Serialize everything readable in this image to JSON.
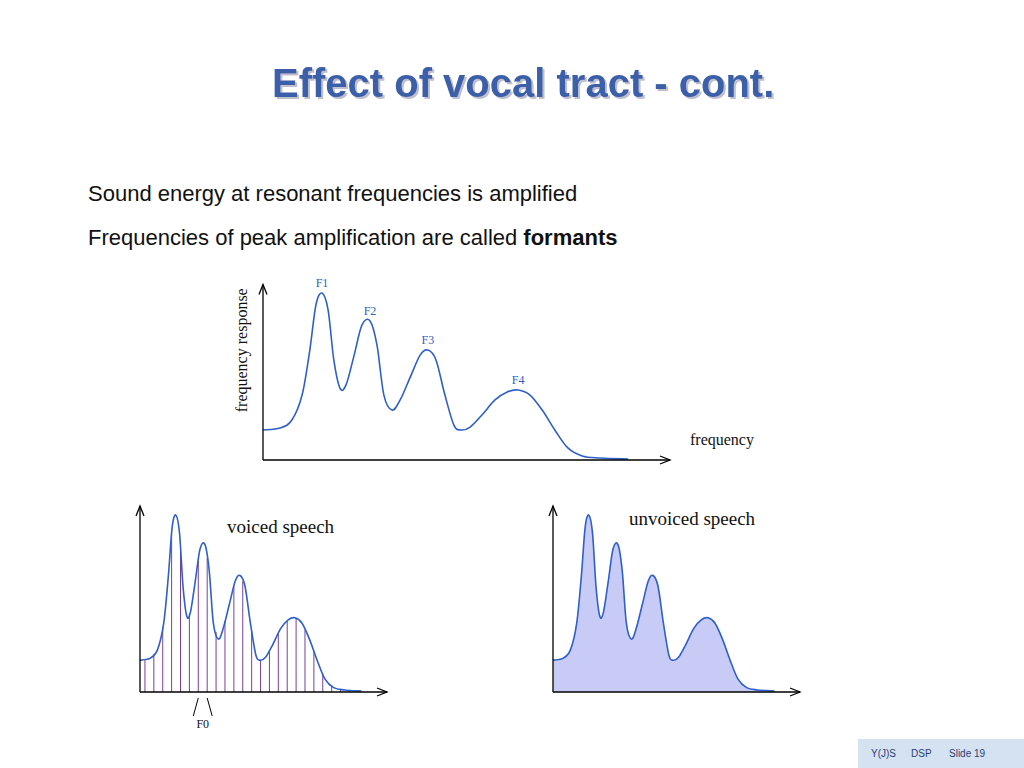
{
  "slide": {
    "title": "Effect of vocal tract - cont.",
    "bullets": [
      {
        "text": "Sound energy at resonant frequencies is amplified"
      },
      {
        "text": "Frequencies of peak amplification are called ",
        "term": "formants"
      }
    ],
    "footer": [
      "Y(J)S",
      "DSP",
      "Slide 19"
    ]
  },
  "chart_data": [
    {
      "type": "line",
      "x_label": "frequency",
      "y_label": "frequency response",
      "x": [
        0,
        4.2,
        7.1,
        9.6,
        11.5,
        13.0,
        14.5,
        16.0,
        17.4,
        18.9,
        20.4,
        22.4,
        24.3,
        26.3,
        28.0,
        29.7,
        31.7,
        33.7,
        36.1,
        38.6,
        40.5,
        42.5,
        44.7,
        46.9,
        48.6,
        50.9,
        53.8,
        57.0,
        60.0,
        62.7,
        65.6,
        68.6,
        71.7,
        74.9,
        78.4,
        82.8,
        89.7
      ],
      "values": [
        15.4,
        16.4,
        20.5,
        33.3,
        56.4,
        79.5,
        85.6,
        76.9,
        51.3,
        36.9,
        38.5,
        53.8,
        69.2,
        71.3,
        59.0,
        33.3,
        25.6,
        30.8,
        42.1,
        53.8,
        56.4,
        51.3,
        33.3,
        17.9,
        15.4,
        16.9,
        23.1,
        30.8,
        34.9,
        35.9,
        33.3,
        25.6,
        15.4,
        6.2,
        2.1,
        1.0,
        0.5
      ],
      "xlim": [
        0,
        100
      ],
      "ylim": [
        0,
        90
      ],
      "tick_labels": false,
      "color": "#2f5fc8",
      "annotations": [
        {
          "text": "F1",
          "x": 14.5
        },
        {
          "text": "F2",
          "x": 26.3
        },
        {
          "text": "F3",
          "x": 40.5
        },
        {
          "text": "F4",
          "x": 62.7
        }
      ]
    },
    {
      "type": "line",
      "title": "voiced speech",
      "x": [
        0,
        4.2,
        7.1,
        9.6,
        11.5,
        13.0,
        14.5,
        16.0,
        17.4,
        18.9,
        20.4,
        22.4,
        24.3,
        26.3,
        28.0,
        29.7,
        31.7,
        33.7,
        36.1,
        38.6,
        40.5,
        42.5,
        44.7,
        46.9,
        48.6,
        50.9,
        53.8,
        57.0,
        60.0,
        62.7,
        65.6,
        68.6,
        71.7,
        74.9,
        78.4,
        82.8,
        89.7
      ],
      "values": [
        15.4,
        16.4,
        20.5,
        33.3,
        56.4,
        79.5,
        85.6,
        76.9,
        51.3,
        36.9,
        38.5,
        53.8,
        69.2,
        71.3,
        59.0,
        33.3,
        25.6,
        30.8,
        42.1,
        53.8,
        56.4,
        51.3,
        33.3,
        17.9,
        15.4,
        16.9,
        23.1,
        30.8,
        34.9,
        35.9,
        33.3,
        25.6,
        15.4,
        6.2,
        2.1,
        1.0,
        0.5
      ],
      "xlim": [
        0,
        100
      ],
      "ylim": [
        0,
        90
      ],
      "tick_labels": false,
      "color": "#2f5fc8",
      "harmonics": [
        2.0,
        5.6,
        9.2,
        12.8,
        16.4,
        20.0,
        23.6,
        27.2,
        30.8,
        34.4,
        38.0,
        41.6,
        45.2,
        48.8,
        52.4,
        56.0,
        59.6,
        63.2,
        66.8,
        70.4,
        74.0,
        77.6,
        81.2,
        84.8,
        88.4
      ],
      "f0_label": {
        "text": "F0",
        "between": [
          23.6,
          27.2
        ]
      }
    },
    {
      "type": "area",
      "title": "unvoiced speech",
      "x": [
        0,
        4.2,
        7.1,
        9.6,
        11.5,
        13.0,
        14.5,
        16.0,
        17.4,
        18.9,
        20.4,
        22.4,
        24.3,
        26.3,
        28.0,
        29.7,
        31.7,
        33.7,
        36.1,
        38.6,
        40.5,
        42.5,
        44.7,
        46.9,
        48.6,
        50.9,
        53.8,
        57.0,
        60.0,
        62.7,
        65.6,
        68.6,
        71.7,
        74.9,
        78.4,
        82.8,
        89.7
      ],
      "values": [
        15.4,
        16.4,
        20.5,
        33.3,
        56.4,
        79.5,
        85.6,
        76.9,
        51.3,
        36.9,
        38.5,
        53.8,
        69.2,
        71.3,
        59.0,
        33.3,
        25.6,
        30.8,
        42.1,
        53.8,
        56.4,
        51.3,
        33.3,
        17.9,
        15.4,
        16.9,
        23.1,
        30.8,
        34.9,
        35.9,
        33.3,
        25.6,
        15.4,
        6.2,
        2.1,
        1.0,
        0.5
      ],
      "xlim": [
        0,
        100
      ],
      "ylim": [
        0,
        90
      ],
      "tick_labels": false,
      "color": "#2f5fc8"
    }
  ]
}
